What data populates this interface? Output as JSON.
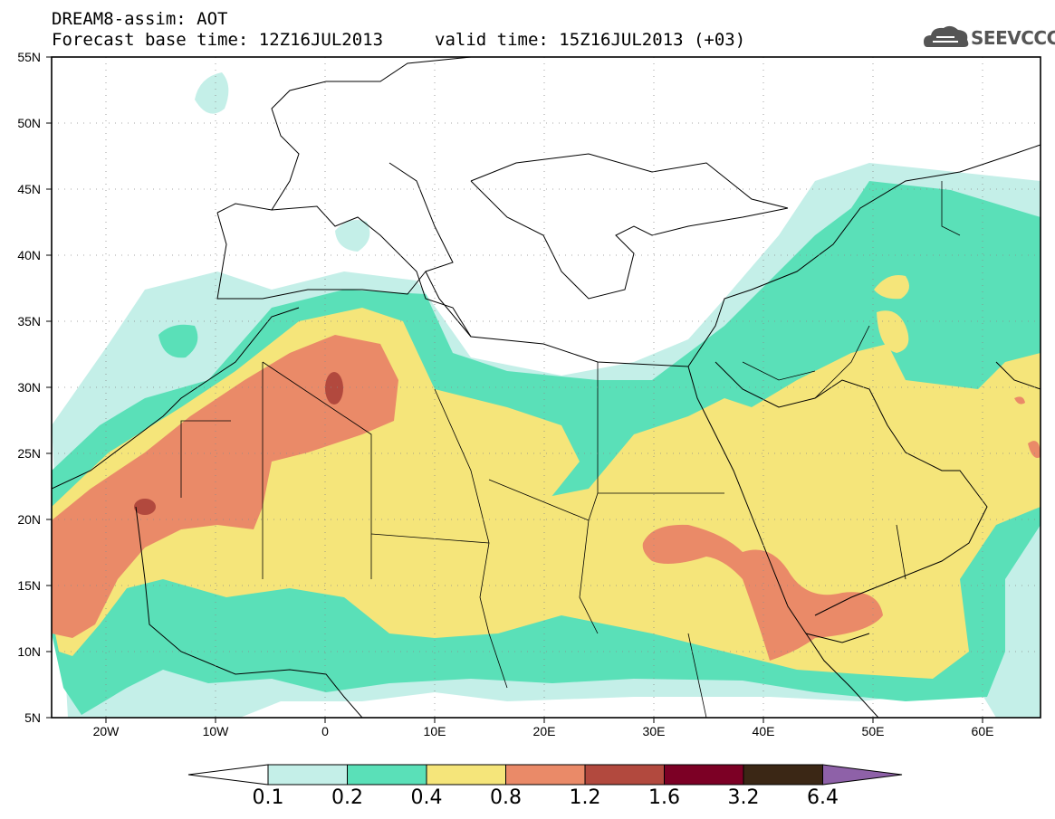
{
  "header": {
    "line1": "DREAM8-assim: AOT",
    "line2": "Forecast base time: 12Z16JUL2013",
    "valid": "valid time: 15Z16JUL2013 (+03)"
  },
  "logo": {
    "text": "SEEVCCC",
    "icon": "cloud-icon"
  },
  "map": {
    "lat_labels": [
      "55N",
      "50N",
      "45N",
      "40N",
      "35N",
      "30N",
      "25N",
      "20N",
      "15N",
      "10N",
      "5N"
    ],
    "lon_labels": [
      "20W",
      "10W",
      "0",
      "10E",
      "20E",
      "30E",
      "40E",
      "50E",
      "60E"
    ],
    "field": "Aerosol Optical Thickness"
  },
  "colorbar": {
    "levels": [
      "0.1",
      "0.2",
      "0.4",
      "0.8",
      "1.2",
      "1.6",
      "3.2",
      "6.4"
    ],
    "colors": [
      "#ffffff",
      "#c4efe8",
      "#5ae0b8",
      "#f5e57a",
      "#ea8a68",
      "#b2493e",
      "#7c0025",
      "#3b2715",
      "#8e61a8"
    ]
  },
  "colors": {
    "c01": "#c4efe8",
    "c02": "#5ae0b8",
    "c04": "#f5e57a",
    "c08": "#ea8a68",
    "c12": "#b2493e"
  }
}
